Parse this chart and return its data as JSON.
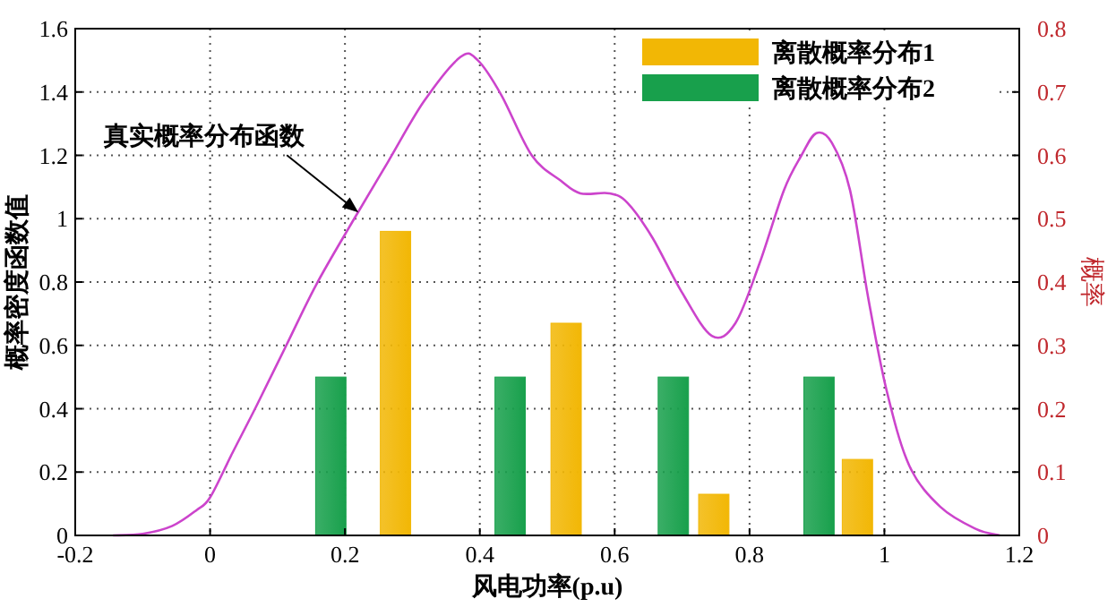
{
  "chart_data": {
    "type": "bar",
    "xlabel": "风电功率(p.u)",
    "ylabel": "概率密度函数值",
    "y2label": "概率",
    "xlim": [
      -0.2,
      1.2
    ],
    "xticks": [
      -0.2,
      0,
      0.2,
      0.4,
      0.6,
      0.8,
      1,
      1.2
    ],
    "ylim": [
      0,
      1.6
    ],
    "yticks": [
      0,
      0.2,
      0.4,
      0.6,
      0.8,
      1,
      1.2,
      1.4,
      1.6
    ],
    "y2lim": [
      0,
      0.8
    ],
    "y2ticks": [
      0,
      0.1,
      0.2,
      0.3,
      0.4,
      0.5,
      0.6,
      0.7,
      0.8
    ],
    "grid": true,
    "legend": "top right",
    "annotations": [
      {
        "text": "真实概率分布函数",
        "x": 0.22,
        "y": 1.02
      }
    ],
    "series": [
      {
        "type": "line",
        "color": "#cc44cc",
        "x": [
          -0.144,
          -0.1,
          -0.056,
          -0.02,
          0,
          0.033,
          0.069,
          0.113,
          0.157,
          0.211,
          0.264,
          0.317,
          0.371,
          0.397,
          0.432,
          0.477,
          0.52,
          0.549,
          0.592,
          0.619,
          0.656,
          0.699,
          0.744,
          0.779,
          0.815,
          0.851,
          0.877,
          0.899,
          0.922,
          0.949,
          0.976,
          1.003,
          1.037,
          1.083,
          1.136,
          1.171
        ],
        "values": [
          0,
          0.005,
          0.03,
          0.08,
          0.12,
          0.26,
          0.41,
          0.6,
          0.79,
          0.99,
          1.18,
          1.37,
          1.51,
          1.5,
          1.39,
          1.2,
          1.12,
          1.08,
          1.08,
          1.05,
          0.94,
          0.77,
          0.63,
          0.67,
          0.86,
          1.09,
          1.2,
          1.27,
          1.24,
          1.09,
          0.75,
          0.46,
          0.22,
          0.09,
          0.02,
          0
        ]
      },
      {
        "name": "离散概率分布1",
        "color": "#f2b705",
        "axis": "y2",
        "x": [
          0.275,
          0.528,
          0.747,
          0.96
        ],
        "values": [
          0.48,
          0.335,
          0.065,
          0.12
        ]
      },
      {
        "name": "离散概率分布2",
        "color": "#18a04c",
        "axis": "y2",
        "x": [
          0.179,
          0.445,
          0.687,
          0.903
        ],
        "values": [
          0.25,
          0.25,
          0.25,
          0.25
        ]
      }
    ]
  }
}
